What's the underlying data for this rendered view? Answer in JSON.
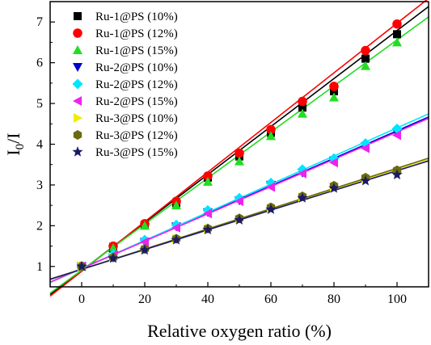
{
  "chart_data": {
    "type": "scatter",
    "xlabel": "Relative oxygen ratio (%)",
    "ylabel_main": "I",
    "ylabel_sub": "0",
    "ylabel_tail": "/I",
    "xlim": [
      -10,
      110
    ],
    "ylim": [
      0.5,
      7.5
    ],
    "xticks": [
      0,
      20,
      40,
      60,
      80,
      100
    ],
    "yticks": [
      1,
      2,
      3,
      4,
      5,
      6,
      7
    ],
    "legend_position": "top-left",
    "grid": false,
    "x": [
      0,
      10,
      20,
      30,
      40,
      50,
      60,
      70,
      80,
      90,
      100
    ],
    "series": [
      {
        "name": "Ru-1@PS (10%)",
        "marker": "square",
        "color": "#000000",
        "values": [
          1.0,
          1.48,
          2.02,
          2.55,
          3.18,
          3.7,
          4.28,
          4.9,
          5.3,
          6.1,
          6.7
        ],
        "fit": {
          "slope": 0.0589,
          "intercept": 0.9
        }
      },
      {
        "name": "Ru-1@PS (12%)",
        "marker": "circle",
        "color": "#ff0000",
        "values": [
          1.0,
          1.5,
          2.05,
          2.6,
          3.22,
          3.78,
          4.36,
          5.05,
          5.42,
          6.3,
          6.95
        ],
        "fit": {
          "slope": 0.0609,
          "intercept": 0.88
        }
      },
      {
        "name": "Ru-1@PS (15%)",
        "marker": "triangle-up",
        "color": "#22dd22",
        "values": [
          1.0,
          1.45,
          2.0,
          2.5,
          3.08,
          3.58,
          4.2,
          4.75,
          5.15,
          5.92,
          6.5
        ],
        "fit": {
          "slope": 0.0565,
          "intercept": 0.91
        }
      },
      {
        "name": "Ru-2@PS (10%)",
        "marker": "triangle-down",
        "color": "#0000cc",
        "values": [
          1.0,
          1.28,
          1.6,
          1.98,
          2.33,
          2.62,
          3.0,
          3.3,
          3.6,
          3.95,
          4.28
        ],
        "fit": {
          "slope": 0.0338,
          "intercept": 0.95
        }
      },
      {
        "name": "Ru-2@PS (12%)",
        "marker": "diamond",
        "color": "#00e5ff",
        "values": [
          1.0,
          1.3,
          1.65,
          2.02,
          2.38,
          2.68,
          3.05,
          3.38,
          3.65,
          4.02,
          4.38
        ],
        "fit": {
          "slope": 0.0345,
          "intercept": 0.95
        }
      },
      {
        "name": "Ru-2@PS (15%)",
        "marker": "triangle-left",
        "color": "#ee22ee",
        "values": [
          1.0,
          1.27,
          1.6,
          1.95,
          2.3,
          2.6,
          2.95,
          3.28,
          3.55,
          3.9,
          4.22
        ],
        "fit": {
          "slope": 0.0335,
          "intercept": 0.95
        }
      },
      {
        "name": "Ru-3@PS (10%)",
        "marker": "triangle-right",
        "color": "#eeee00",
        "values": [
          1.0,
          1.22,
          1.42,
          1.68,
          1.92,
          2.16,
          2.42,
          2.7,
          2.95,
          3.15,
          3.33
        ],
        "fit": {
          "slope": 0.0246,
          "intercept": 0.93
        }
      },
      {
        "name": "Ru-3@PS (12%)",
        "marker": "hexagon",
        "color": "#6b6b10",
        "values": [
          1.0,
          1.22,
          1.43,
          1.68,
          1.93,
          2.18,
          2.45,
          2.72,
          2.98,
          3.18,
          3.36
        ],
        "fit": {
          "slope": 0.0248,
          "intercept": 0.93
        }
      },
      {
        "name": "Ru-3@PS (15%)",
        "marker": "star",
        "color": "#1a1a66",
        "values": [
          1.0,
          1.2,
          1.4,
          1.65,
          1.9,
          2.14,
          2.4,
          2.68,
          2.92,
          3.1,
          3.25
        ],
        "fit": {
          "slope": 0.0242,
          "intercept": 0.93
        }
      }
    ]
  }
}
